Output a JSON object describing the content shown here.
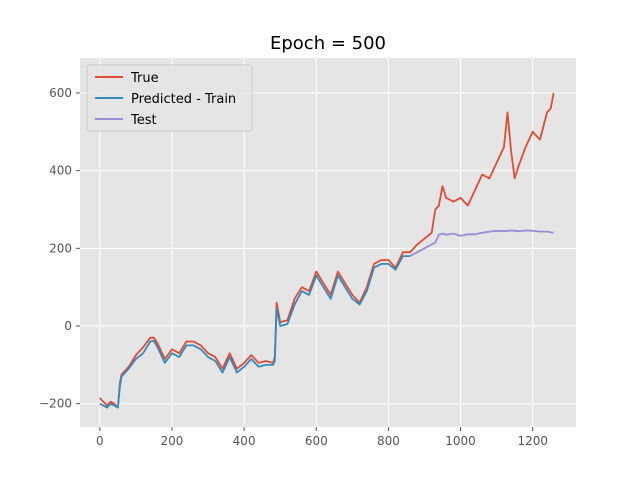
{
  "chart_data": {
    "type": "line",
    "title": "Epoch = 500",
    "xlabel": "",
    "ylabel": "",
    "xlim": [
      -55,
      1320
    ],
    "ylim": [
      -260,
      690
    ],
    "xticks": [
      0,
      200,
      400,
      600,
      800,
      1000,
      1200
    ],
    "yticks": [
      -200,
      0,
      200,
      400,
      600
    ],
    "grid": true,
    "legend_position": "top-left",
    "series": [
      {
        "name": "True",
        "color": "#E24A33",
        "x": [
          0,
          10,
          20,
          30,
          40,
          50,
          55,
          60,
          80,
          100,
          120,
          140,
          150,
          160,
          180,
          200,
          220,
          240,
          260,
          280,
          300,
          320,
          340,
          360,
          380,
          400,
          420,
          440,
          460,
          480,
          485,
          490,
          500,
          520,
          540,
          560,
          580,
          600,
          620,
          640,
          660,
          680,
          700,
          720,
          740,
          760,
          780,
          800,
          820,
          840,
          860,
          880,
          900,
          920,
          930,
          940,
          950,
          960,
          980,
          1000,
          1020,
          1040,
          1060,
          1080,
          1100,
          1120,
          1130,
          1140,
          1150,
          1160,
          1180,
          1200,
          1220,
          1240,
          1250,
          1258
        ],
        "y": [
          -185,
          -195,
          -205,
          -195,
          -200,
          -210,
          -150,
          -125,
          -105,
          -75,
          -55,
          -30,
          -30,
          -45,
          -85,
          -60,
          -70,
          -40,
          -40,
          -50,
          -70,
          -80,
          -110,
          -70,
          -110,
          -95,
          -75,
          -95,
          -90,
          -95,
          -80,
          60,
          10,
          15,
          70,
          100,
          90,
          140,
          110,
          80,
          140,
          110,
          80,
          60,
          100,
          160,
          170,
          170,
          150,
          190,
          190,
          210,
          225,
          240,
          300,
          310,
          360,
          330,
          320,
          330,
          310,
          350,
          390,
          380,
          420,
          460,
          550,
          450,
          380,
          410,
          460,
          500,
          480,
          550,
          560,
          600
        ]
      },
      {
        "name": "Predicted - Train",
        "color": "#348ABD",
        "x": [
          0,
          10,
          20,
          30,
          40,
          50,
          55,
          60,
          80,
          100,
          120,
          140,
          150,
          160,
          180,
          200,
          220,
          240,
          260,
          280,
          300,
          320,
          340,
          360,
          380,
          400,
          420,
          440,
          460,
          480,
          485,
          490,
          500,
          520,
          540,
          560,
          580,
          600,
          620,
          640,
          660,
          680,
          700,
          720,
          740,
          760,
          780,
          800,
          820,
          840,
          860
        ],
        "y": [
          -200,
          -205,
          -210,
          -200,
          -205,
          -210,
          -160,
          -130,
          -110,
          -85,
          -70,
          -40,
          -38,
          -55,
          -95,
          -70,
          -80,
          -50,
          -50,
          -60,
          -80,
          -90,
          -120,
          -80,
          -120,
          -105,
          -85,
          -105,
          -100,
          -100,
          -90,
          45,
          0,
          5,
          55,
          90,
          80,
          130,
          100,
          70,
          130,
          100,
          70,
          55,
          90,
          150,
          160,
          160,
          145,
          180,
          180
        ]
      },
      {
        "name": "Test",
        "color": "#988ED5",
        "x": [
          860,
          880,
          900,
          920,
          930,
          940,
          950,
          960,
          980,
          1000,
          1020,
          1040,
          1060,
          1080,
          1100,
          1120,
          1140,
          1160,
          1180,
          1200,
          1220,
          1240,
          1258
        ],
        "y": [
          180,
          190,
          200,
          210,
          215,
          235,
          238,
          235,
          238,
          232,
          236,
          236,
          240,
          243,
          245,
          244,
          246,
          244,
          246,
          245,
          243,
          243,
          240
        ]
      }
    ]
  }
}
